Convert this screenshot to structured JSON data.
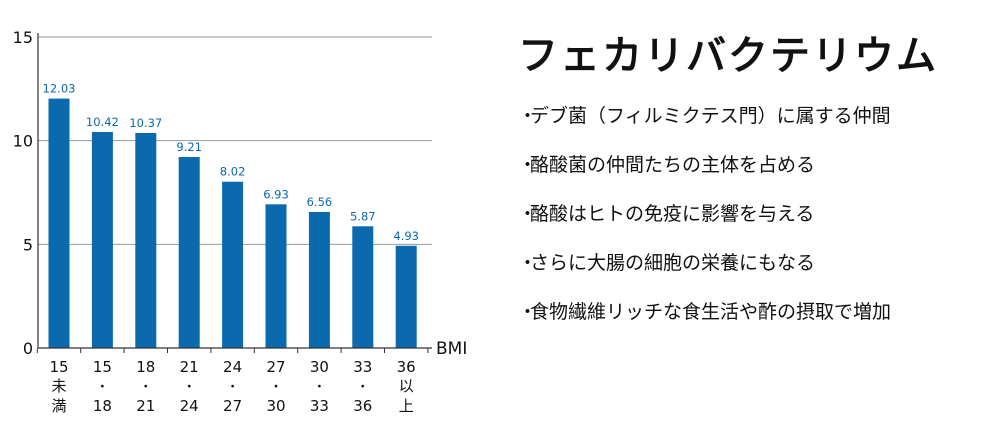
{
  "chart_data": {
    "type": "bar",
    "categories": [
      "15未満",
      "15-18",
      "18-21",
      "21-24",
      "24-27",
      "27-30",
      "30-33",
      "33-36",
      "36以上"
    ],
    "category_tick_lines": [
      [
        "15",
        "未",
        "満"
      ],
      [
        "15",
        "・",
        "18"
      ],
      [
        "18",
        "・",
        "21"
      ],
      [
        "21",
        "・",
        "24"
      ],
      [
        "24",
        "・",
        "27"
      ],
      [
        "27",
        "・",
        "30"
      ],
      [
        "30",
        "・",
        "33"
      ],
      [
        "33",
        "・",
        "36"
      ],
      [
        "36",
        "以",
        "上"
      ]
    ],
    "values": [
      12.03,
      10.42,
      10.37,
      9.21,
      8.02,
      6.93,
      6.56,
      5.87,
      4.93
    ],
    "value_labels": [
      "12.03",
      "10.42",
      "10.37",
      "9.21",
      "8.02",
      "6.93",
      "6.56",
      "5.87",
      "4.93"
    ],
    "xlabel": "BMI",
    "ylabel": "",
    "ylim": [
      0,
      15
    ],
    "yticks": [
      0,
      5,
      10,
      15
    ],
    "grid": true,
    "bar_color": "#0a6aad",
    "label_color": "#0a6aad"
  },
  "panel": {
    "title": "フェカリバクテリウム",
    "bullet_symbol": "・",
    "items": [
      "デブ菌（フィルミクテス門）に属する仲間",
      "酪酸菌の仲間たちの主体を占める",
      "酪酸はヒトの免疫に影響を与える",
      "さらに大腸の細胞の栄養にもなる",
      "食物繊維リッチな食生活や酢の摂取で増加"
    ]
  }
}
